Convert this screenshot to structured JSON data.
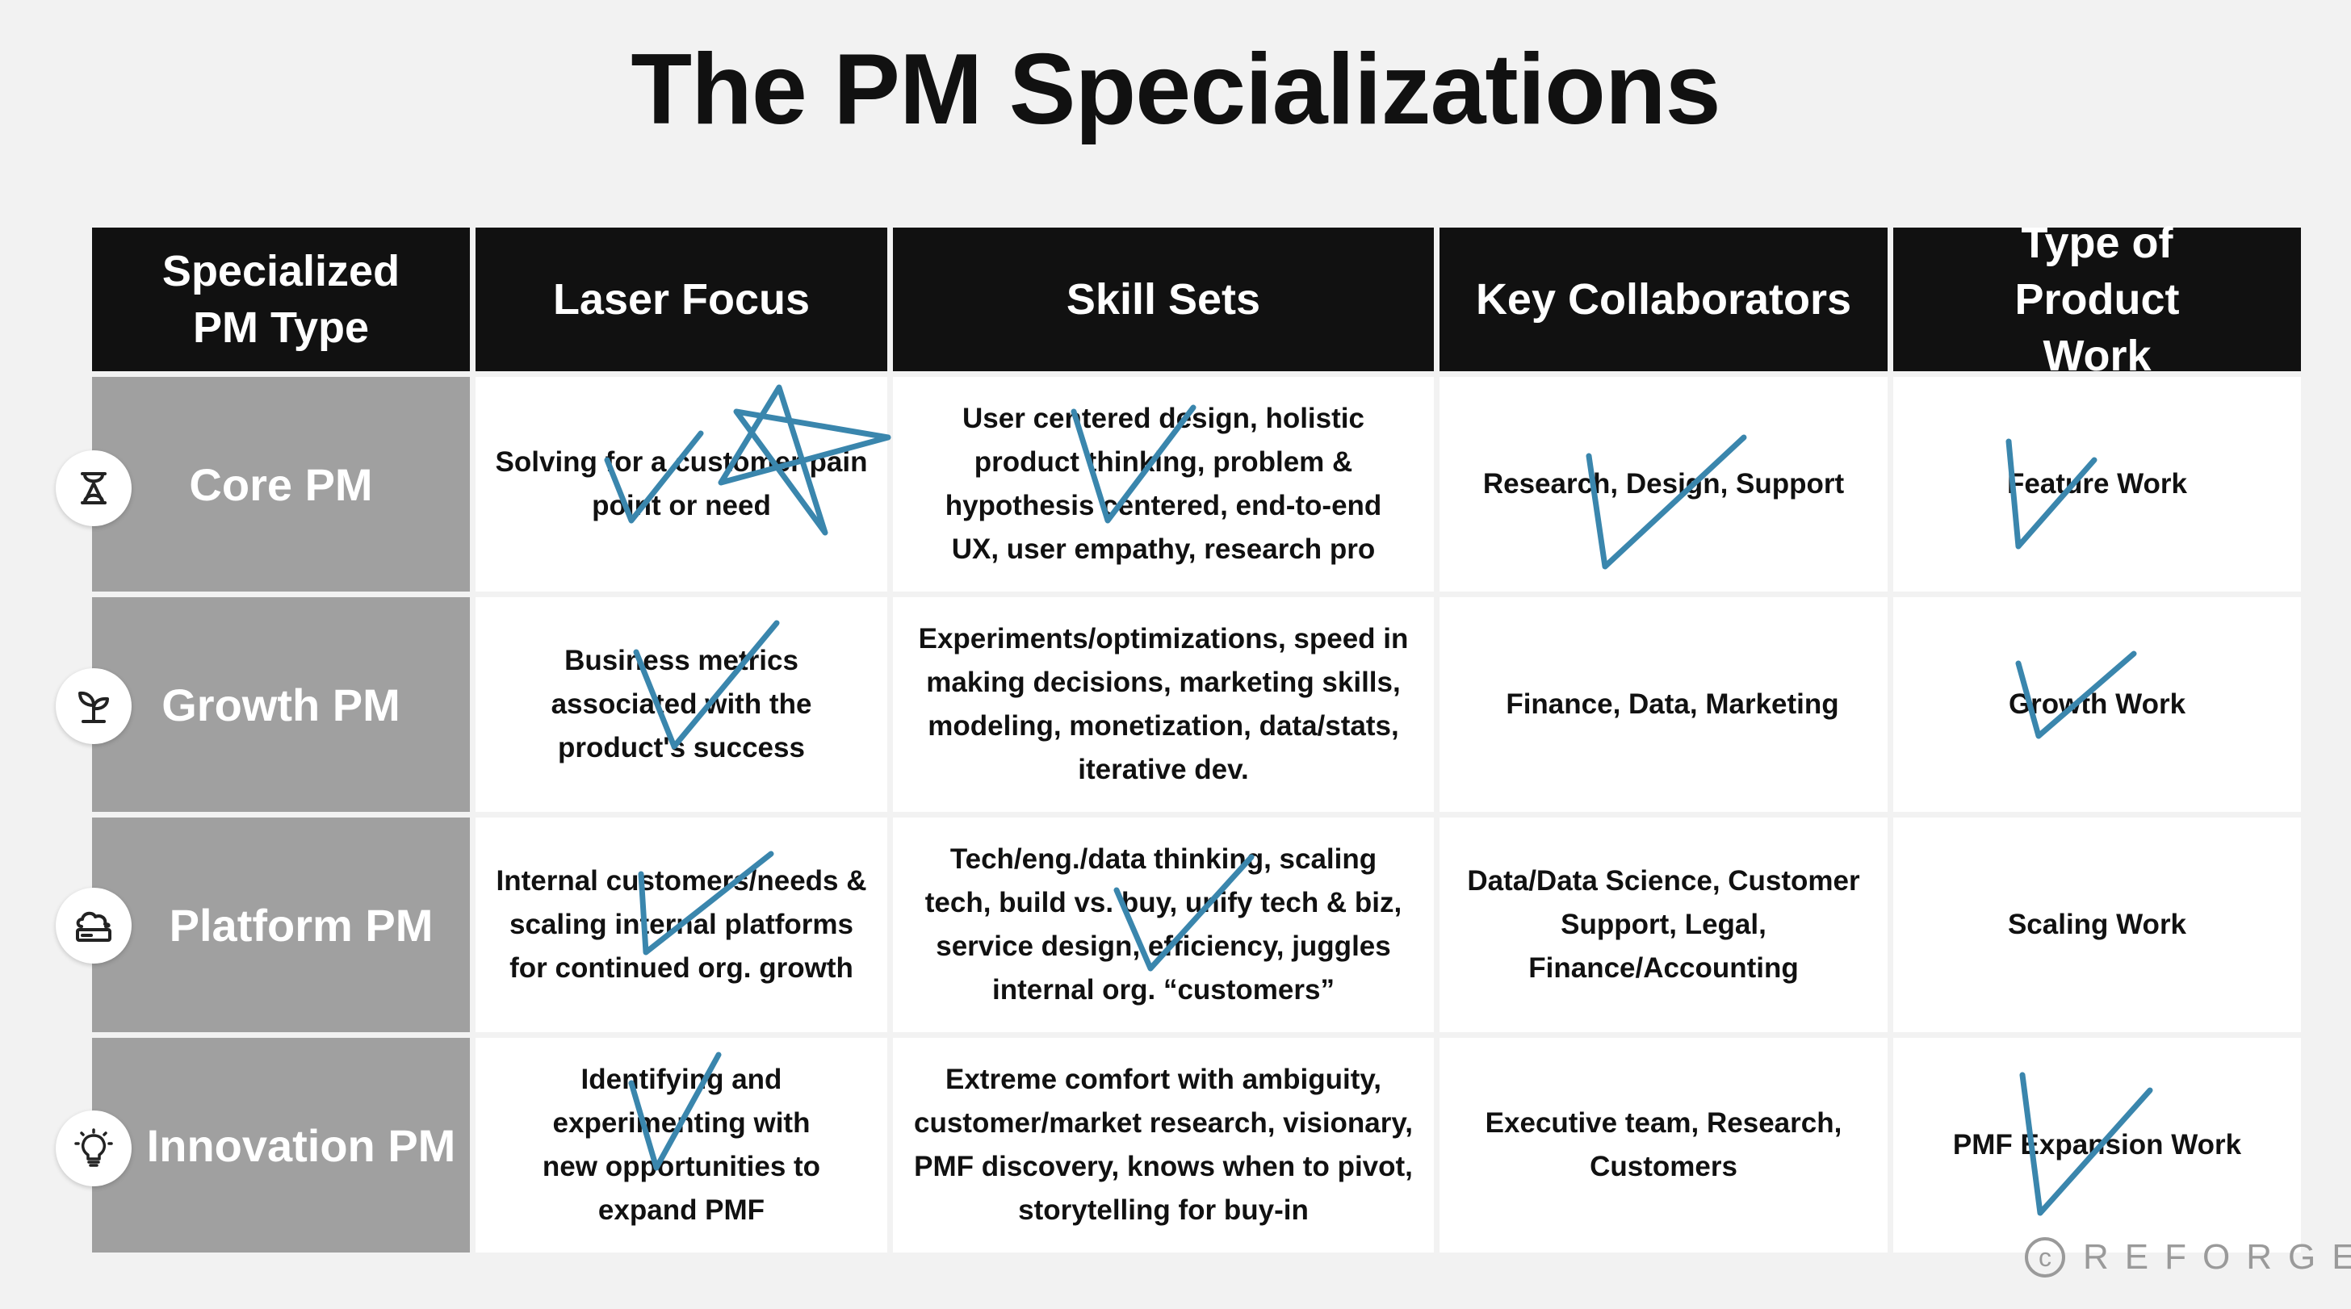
{
  "title": "The PM Specializations",
  "headers": [
    "Specialized PM Type",
    "Laser Focus",
    "Skill Sets",
    "Key Collaborators",
    "Type of Product Work"
  ],
  "rows": [
    {
      "icon": "hourglass-icon",
      "type": "Core PM",
      "focus": "Solving for a customer pain point or need",
      "skills": "User centered design, holistic product thinking, problem & hypothesis centered, end-to-end UX, user empathy, research pro",
      "collab": "Research, Design, Support",
      "work": "Feature Work"
    },
    {
      "icon": "sprout-icon",
      "type": "Growth PM",
      "focus": "Business metrics associated with the product's success",
      "skills": "Experiments/optimizations, speed in making decisions, marketing skills, modeling, monetization, data/stats, iterative dev.",
      "collab": "Finance, Data, Marketing",
      "work": "Growth Work"
    },
    {
      "icon": "cloud-server-icon",
      "type": "Platform PM",
      "focus": "Internal customers/needs & scaling internal platforms for continued org. growth",
      "skills": "Tech/eng./data thinking, scaling tech, build vs. buy, unify tech & biz, service design, efficiency, juggles internal org. “customers”",
      "collab": "Data/Data Science, Customer Support, Legal, Finance/Accounting",
      "work": "Scaling Work"
    },
    {
      "icon": "lightbulb-icon",
      "type": "Innovation PM",
      "focus": "Identifying and experimenting with new opportunities to expand PMF",
      "skills": "Extreme comfort with ambiguity, customer/market research, visionary, PMF discovery, knows when to pivot, storytelling for buy-in",
      "collab": "Executive team, Research, Customers",
      "work": "PMF Expansion Work"
    }
  ],
  "watermark": "REFORGE",
  "colors": {
    "header_bg": "#111111",
    "type_bg": "#a0a0a0",
    "page_bg": "#f2f2f2",
    "annotation": "#3a86ad"
  }
}
